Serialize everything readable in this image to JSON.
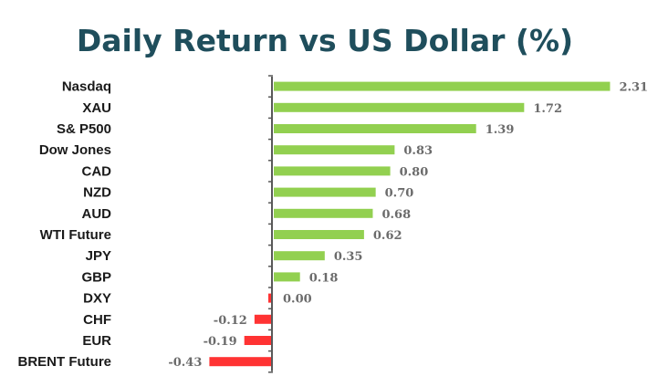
{
  "chart_data": {
    "type": "bar",
    "orientation": "horizontal",
    "title": "Daily Return vs US Dollar (%)",
    "categories": [
      "Nasdaq",
      "XAU",
      "S& P500",
      "Dow Jones",
      "CAD",
      "NZD",
      "AUD",
      "WTI Future",
      "JPY",
      "GBP",
      "DXY",
      "CHF",
      "EUR",
      "BRENT Future"
    ],
    "values": [
      2.31,
      1.72,
      1.39,
      0.83,
      0.8,
      0.7,
      0.68,
      0.62,
      0.35,
      0.18,
      0.0,
      -0.12,
      -0.19,
      -0.43
    ],
    "value_labels": [
      "2.31",
      "1.72",
      "1.39",
      "0.83",
      "0.80",
      "0.70",
      "0.68",
      "0.62",
      "0.35",
      "0.18",
      "0.00",
      "-0.12",
      "-0.19",
      "-0.43"
    ],
    "colors": {
      "positive": "#92d050",
      "negative": "#ff3333",
      "axis": "#595959"
    },
    "grid": false,
    "legend": "none"
  }
}
